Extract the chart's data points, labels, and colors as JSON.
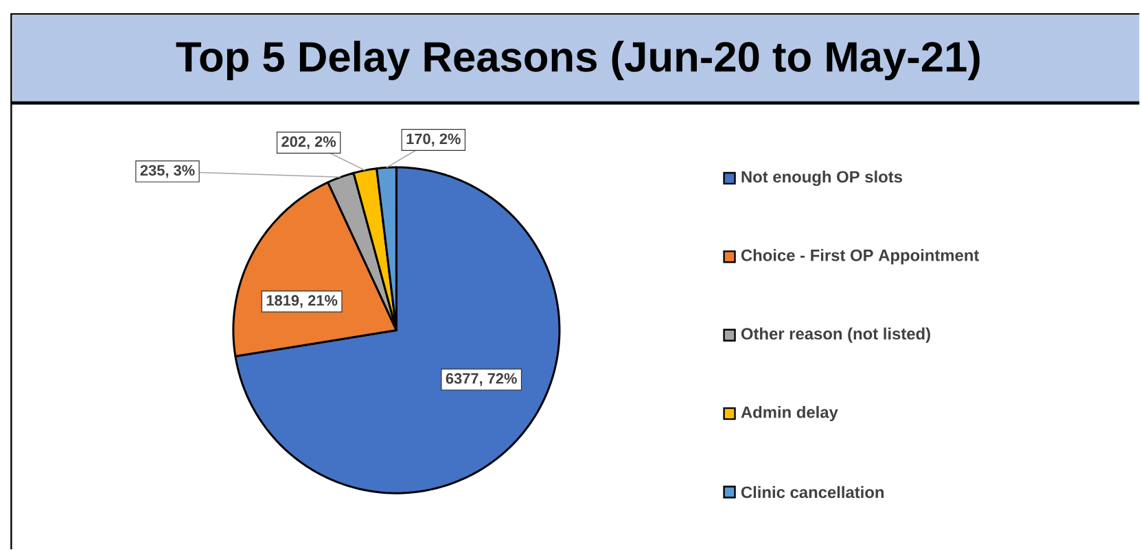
{
  "chart_data": {
    "type": "pie",
    "title": "Top 5 Delay Reasons (Jun-20 to May-21)",
    "categories": [
      "Not enough OP slots",
      "Choice - First OP Appointment",
      "Other reason (not listed)",
      "Admin delay",
      "Clinic cancellation"
    ],
    "values": [
      6377,
      1819,
      235,
      202,
      170
    ],
    "colors": [
      "#4472c4",
      "#ed7d31",
      "#a5a5a5",
      "#ffc000",
      "#5b9bd5"
    ],
    "value_labels": [
      "6377, 72%",
      "1819, 21%",
      "235, 3%",
      "202, 2%",
      "170, 2%"
    ],
    "legend": "right"
  }
}
